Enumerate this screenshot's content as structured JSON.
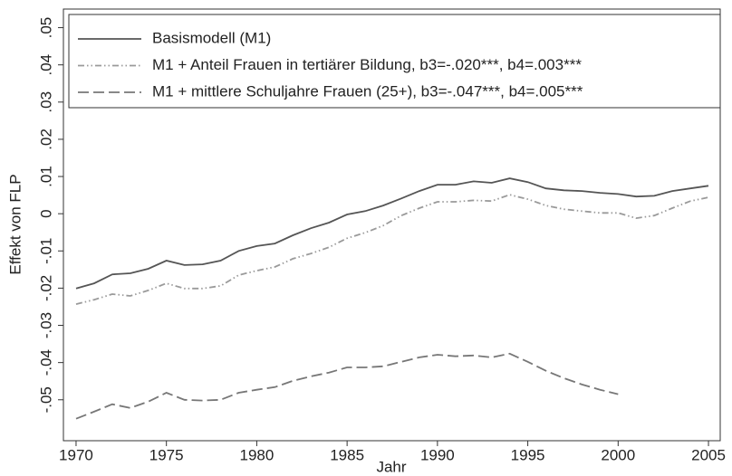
{
  "chart_data": {
    "type": "line",
    "x_label": "Jahr",
    "y_label": "Effekt von FLP",
    "x": [
      1970,
      1971,
      1972,
      1973,
      1974,
      1975,
      1976,
      1977,
      1978,
      1979,
      1980,
      1981,
      1982,
      1983,
      1984,
      1985,
      1986,
      1987,
      1988,
      1989,
      1990,
      1991,
      1992,
      1993,
      1994,
      1995,
      1996,
      1997,
      1998,
      1999,
      2000,
      2001,
      2002,
      2003,
      2004,
      2005
    ],
    "series": [
      {
        "name": "Basismodell (M1)",
        "color": "#555555",
        "linestyle": "solid",
        "values": [
          -0.0201,
          -0.0187,
          -0.0163,
          -0.016,
          -0.0148,
          -0.0126,
          -0.0138,
          -0.0136,
          -0.0126,
          -0.01,
          -0.0087,
          -0.008,
          -0.0058,
          -0.0039,
          -0.0024,
          -0.0002,
          0.0007,
          0.0022,
          0.0041,
          0.0061,
          0.0078,
          0.0078,
          0.0087,
          0.0083,
          0.0095,
          0.0085,
          0.0068,
          0.0063,
          0.0061,
          0.0056,
          0.0053,
          0.0046,
          0.0048,
          0.0061,
          0.0068,
          0.0075
        ]
      },
      {
        "name": "M1 + Anteil Frauen in tertiärer Bildung, b3=-.020***, b4=.003***",
        "color": "#9a9a9a",
        "linestyle": "dashdotdot",
        "values": [
          -0.0243,
          -0.0231,
          -0.0216,
          -0.0221,
          -0.0206,
          -0.0187,
          -0.0201,
          -0.0201,
          -0.0194,
          -0.0165,
          -0.0153,
          -0.0143,
          -0.0121,
          -0.0107,
          -0.009,
          -0.0066,
          -0.0051,
          -0.0032,
          -0.0005,
          0.0015,
          0.0032,
          0.0032,
          0.0036,
          0.0034,
          0.0051,
          0.0039,
          0.0022,
          0.0012,
          0.0007,
          0.0002,
          0.0002,
          -0.0012,
          -0.0005,
          0.0015,
          0.0034,
          0.0044
        ]
      },
      {
        "name": "M1 + mittlere Schuljahre Frauen (25+), b3=-.047***, b4=.005***",
        "color": "#777777",
        "linestyle": "dashed",
        "values": [
          -0.0551,
          -0.0532,
          -0.0512,
          -0.0522,
          -0.0505,
          -0.0481,
          -0.05,
          -0.0502,
          -0.05,
          -0.0481,
          -0.0473,
          -0.0466,
          -0.0449,
          -0.0437,
          -0.0427,
          -0.0413,
          -0.0413,
          -0.041,
          -0.0398,
          -0.0386,
          -0.0379,
          -0.0383,
          -0.0381,
          -0.0386,
          -0.0376,
          -0.0398,
          -0.0422,
          -0.0442,
          -0.0459,
          -0.0473,
          -0.0485,
          null,
          null,
          null,
          null,
          null
        ]
      }
    ],
    "xlim": [
      1969.3,
      2005.65
    ],
    "ylim": [
      -0.061,
      0.055
    ],
    "xticks": [
      1970,
      1975,
      1980,
      1985,
      1990,
      1995,
      2000,
      2005
    ],
    "yticks": [
      {
        "value": -0.05,
        "label": "-.05"
      },
      {
        "value": -0.04,
        "label": "-.04"
      },
      {
        "value": -0.03,
        "label": "-.03"
      },
      {
        "value": -0.02,
        "label": "-.02"
      },
      {
        "value": -0.01,
        "label": "-.01"
      },
      0,
      {
        "value": 0.01,
        "label": ".01"
      },
      {
        "value": 0.02,
        "label": ".02"
      },
      {
        "value": 0.03,
        "label": ".03"
      },
      {
        "value": 0.04,
        "label": ".04"
      },
      {
        "value": 0.05,
        "label": ".05"
      }
    ],
    "grid": false,
    "legend": "top-left"
  }
}
